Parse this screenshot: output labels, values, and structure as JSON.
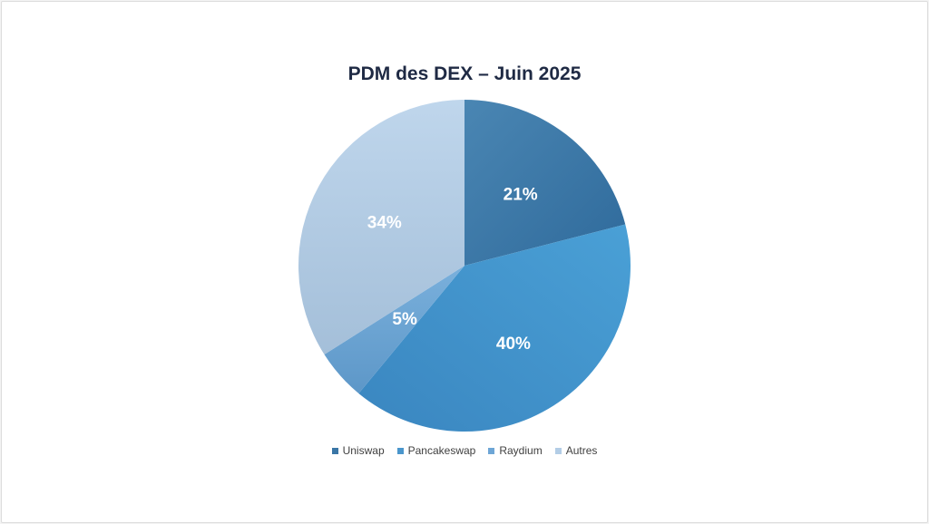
{
  "chart_data": {
    "type": "pie",
    "title": "PDM des DEX – Juin 2025",
    "categories": [
      "Uniswap",
      "Pancakeswap",
      "Raydium",
      "Autres"
    ],
    "values": [
      21,
      40,
      5,
      34
    ],
    "data_labels": [
      "21%",
      "40%",
      "5%",
      "34%"
    ],
    "colors": [
      "#3a76a6",
      "#4a96cc",
      "#6ea6d6",
      "#b3cde6"
    ],
    "legend_position": "bottom"
  }
}
